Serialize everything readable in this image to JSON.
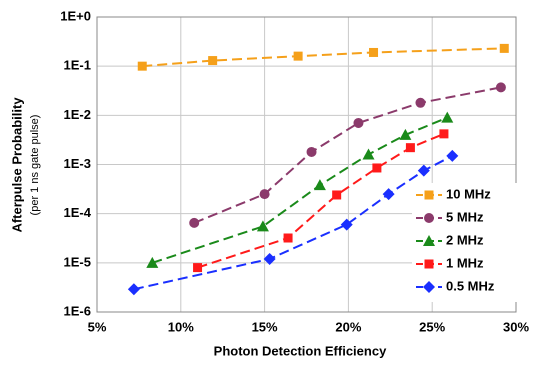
{
  "chart_data": {
    "type": "line",
    "xlabel": "Photon Detection Efficiency",
    "ylabel": "Afterpulse Probability",
    "ylabel_sub": "(per 1 ns gate pulse)",
    "xlim": [
      5,
      30
    ],
    "xticks": [
      {
        "value": 5,
        "label": "5%"
      },
      {
        "value": 10,
        "label": "10%"
      },
      {
        "value": 15,
        "label": "15%"
      },
      {
        "value": 20,
        "label": "20%"
      },
      {
        "value": 25,
        "label": "25%"
      },
      {
        "value": 30,
        "label": "30%"
      }
    ],
    "ylim": [
      1e-06,
      1
    ],
    "yticks": [
      {
        "value": 1,
        "label": "1E+0"
      },
      {
        "value": 0.1,
        "label": "1E-1"
      },
      {
        "value": 0.01,
        "label": "1E-2"
      },
      {
        "value": 0.001,
        "label": "1E-3"
      },
      {
        "value": 0.0001,
        "label": "1E-4"
      },
      {
        "value": 1e-05,
        "label": "1E-5"
      },
      {
        "value": 1e-06,
        "label": "1E-6"
      }
    ],
    "y_log": true,
    "grid": true,
    "legend": "right",
    "series": [
      {
        "name": "10 MHz",
        "color": "#f5a01a",
        "marker": "square",
        "x": [
          7.7,
          11.9,
          17.0,
          21.5,
          29.3
        ],
        "values": [
          0.1,
          0.13,
          0.16,
          0.19,
          0.23
        ]
      },
      {
        "name": "5 MHz",
        "color": "#8b3a6b",
        "marker": "circle",
        "x": [
          10.8,
          15.0,
          17.8,
          20.6,
          24.3,
          29.1
        ],
        "values": [
          6.5e-05,
          0.00025,
          0.0018,
          0.007,
          0.018,
          0.037
        ]
      },
      {
        "name": "2 MHz",
        "color": "#1a8a1a",
        "marker": "triangle",
        "x": [
          8.3,
          14.9,
          18.3,
          21.2,
          23.4,
          25.9
        ],
        "values": [
          1e-05,
          5.5e-05,
          0.00038,
          0.0016,
          0.004,
          0.009
        ]
      },
      {
        "name": "1 MHz",
        "color": "#ff1a1a",
        "marker": "square",
        "x": [
          11.0,
          16.4,
          19.3,
          21.7,
          23.7,
          25.7
        ],
        "values": [
          8e-06,
          3.2e-05,
          0.00024,
          0.00085,
          0.0022,
          0.0042
        ]
      },
      {
        "name": "0.5 MHz",
        "color": "#1a2fff",
        "marker": "diamond",
        "x": [
          7.2,
          15.3,
          19.9,
          22.4,
          24.5,
          26.2
        ],
        "values": [
          2.9e-06,
          1.2e-05,
          6e-05,
          0.00025,
          0.00075,
          0.0015
        ]
      }
    ]
  }
}
